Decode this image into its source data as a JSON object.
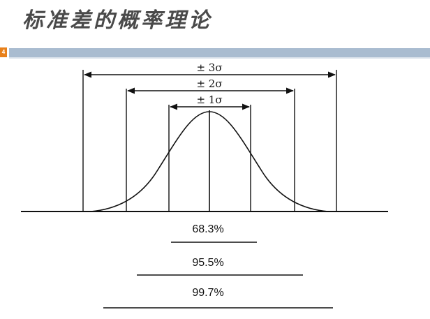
{
  "slide": {
    "title": "标准差的概率理论",
    "page_number": "4"
  },
  "diagram": {
    "sigma_labels": [
      "± 3σ",
      "± 2σ",
      "± 1σ"
    ],
    "percent_labels": [
      "68.3%",
      "95.5%",
      "99.7%"
    ]
  }
}
